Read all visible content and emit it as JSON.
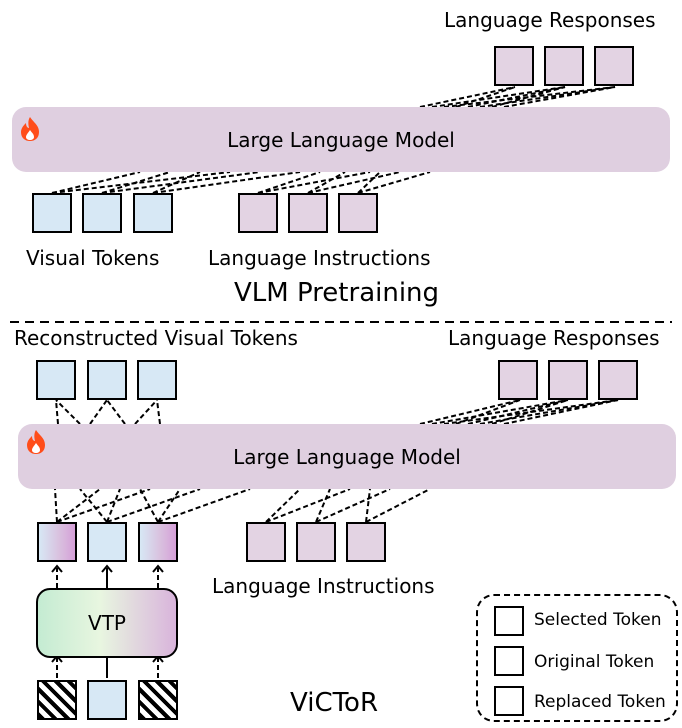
{
  "top": {
    "responses_label": "Language Responses",
    "llm_label": "Large Language Model",
    "visual_label": "Visual Tokens",
    "instructions_label": "Language Instructions",
    "section_title": "VLM Pretraining"
  },
  "bottom": {
    "reconstructed_label": "Reconstructed Visual Tokens",
    "responses_label": "Language Responses",
    "llm_label": "Large Language Model",
    "instructions_label": "Language Instructions",
    "vtp_label": "VTP",
    "section_title": "ViCToR"
  },
  "legend": {
    "selected": "Selected Token",
    "original": "Original  Token",
    "replaced": "Replaced Token"
  },
  "colors": {
    "llm": "#dfcfe0",
    "language_token": "#e3d3e3",
    "visual_token": "#d7e8f5",
    "replaced_token_end": "#d59fd8",
    "flame": "#ff4d1a"
  }
}
